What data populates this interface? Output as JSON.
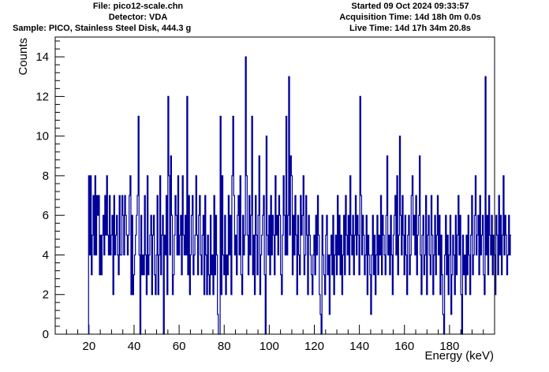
{
  "header": {
    "file": "File: pico12-scale.chn",
    "detector": "Detector: VDA",
    "sample": "Sample: PICO, Stainless Steel Disk, 444.3 g",
    "started": "Started 09 Oct 2024 09:33:57",
    "acquisition": "Acquisition Time: 14d 18h 0m 0.0s",
    "live": "Live Time: 14d 17h 34m 20.8s"
  },
  "chart_data": {
    "type": "histogram",
    "title": "",
    "xlabel": "Energy (keV)",
    "ylabel": "Counts",
    "xlim": [
      5,
      200
    ],
    "ylim": [
      0,
      15
    ],
    "xticks": [
      20,
      40,
      60,
      80,
      100,
      120,
      140,
      160,
      180
    ],
    "yticks": [
      0,
      2,
      4,
      6,
      8,
      10,
      12,
      14
    ],
    "bin_start": 19.8,
    "bin_width": 0.4,
    "line_color": "#000099",
    "grid": false,
    "counts": [
      8,
      4,
      8,
      3,
      5,
      7,
      4,
      8,
      4,
      7,
      6,
      7,
      3,
      5,
      3,
      5,
      6,
      4,
      7,
      5,
      8,
      5,
      4,
      7,
      4,
      5,
      6,
      2,
      7,
      4,
      5,
      6,
      4,
      3,
      7,
      4,
      4,
      7,
      6,
      4,
      7,
      6,
      5,
      4,
      5,
      7,
      8,
      2,
      6,
      2,
      3,
      4,
      5,
      6,
      7,
      11,
      4,
      0,
      6,
      3,
      4,
      3,
      7,
      4,
      2,
      8,
      3,
      4,
      5,
      6,
      2,
      5,
      6,
      3,
      2,
      4,
      7,
      2,
      4,
      8,
      3,
      5,
      6,
      0,
      5,
      4,
      7,
      2,
      12,
      8,
      4,
      9,
      6,
      2,
      3,
      5,
      7,
      6,
      4,
      8,
      4,
      5,
      6,
      3,
      8,
      5,
      4,
      6,
      4,
      12,
      3,
      7,
      2,
      4,
      6,
      7,
      3,
      4,
      5,
      8,
      5,
      3,
      6,
      7,
      4,
      3,
      5,
      6,
      2,
      7,
      4,
      2,
      5,
      3,
      2,
      6,
      3,
      4,
      2,
      7,
      3,
      6,
      4,
      1,
      0,
      0,
      11,
      2,
      8,
      4,
      3,
      6,
      2,
      4,
      3,
      7,
      4,
      6,
      2,
      8,
      11,
      7,
      4,
      5,
      3,
      6,
      7,
      4,
      8,
      3,
      2,
      6,
      4,
      5,
      14,
      8,
      5,
      3,
      7,
      4,
      6,
      11,
      3,
      5,
      2,
      7,
      5,
      3,
      6,
      9,
      2,
      4,
      5,
      6,
      7,
      3,
      0,
      10,
      5,
      4,
      6,
      3,
      7,
      4,
      6,
      5,
      3,
      8,
      5,
      6,
      4,
      7,
      6,
      3,
      2,
      5,
      8,
      6,
      4,
      11,
      4,
      6,
      13,
      5,
      9,
      8,
      3,
      6,
      4,
      7,
      5,
      2,
      6,
      4,
      3,
      7,
      5,
      6,
      8,
      3,
      4,
      7,
      5,
      2,
      6,
      5,
      4,
      3,
      2,
      4,
      5,
      3,
      6,
      4,
      7,
      5,
      2,
      1,
      0,
      6,
      4,
      3,
      2,
      5,
      6,
      3,
      4,
      1,
      4,
      5,
      3,
      6,
      2,
      4,
      5,
      3,
      7,
      4,
      6,
      3,
      5,
      2,
      4,
      6,
      3,
      7,
      5,
      4,
      6,
      3,
      8,
      5,
      4,
      6,
      3,
      5,
      7,
      4,
      6,
      5,
      3,
      12,
      7,
      4,
      6,
      5,
      3,
      4,
      6,
      2,
      5,
      4,
      3,
      1,
      4,
      6,
      3,
      5,
      2,
      4,
      6,
      3,
      5,
      4,
      7,
      3,
      6,
      5,
      4,
      3,
      6,
      9,
      4,
      5,
      3,
      6,
      4,
      2,
      5,
      6,
      7,
      4,
      8,
      3,
      5,
      10,
      6,
      4,
      7,
      5,
      3,
      6,
      4,
      2,
      5,
      6,
      3,
      4,
      7,
      8,
      5,
      6,
      4,
      7,
      3,
      5,
      6,
      9,
      4,
      2,
      5,
      6,
      3,
      4,
      7,
      2,
      5,
      6,
      4,
      3,
      7,
      5,
      2,
      4,
      6,
      3,
      5,
      7,
      4,
      6,
      2,
      5,
      3,
      1,
      0,
      4,
      6,
      3,
      5,
      2,
      4,
      6,
      1,
      3,
      5,
      4,
      2,
      6,
      3,
      5,
      7,
      4,
      6,
      2,
      0,
      5,
      3,
      4,
      2,
      5,
      3,
      6,
      4,
      2,
      5,
      7,
      3,
      4,
      6,
      8,
      4,
      5,
      6,
      3,
      7,
      4,
      5,
      6,
      3,
      2,
      13,
      4,
      6,
      3,
      7,
      5,
      4,
      6,
      3,
      5,
      4,
      2,
      6,
      5,
      3,
      7,
      4,
      6,
      3,
      5,
      8,
      4,
      6,
      5,
      3,
      4,
      6,
      4,
      5
    ]
  }
}
